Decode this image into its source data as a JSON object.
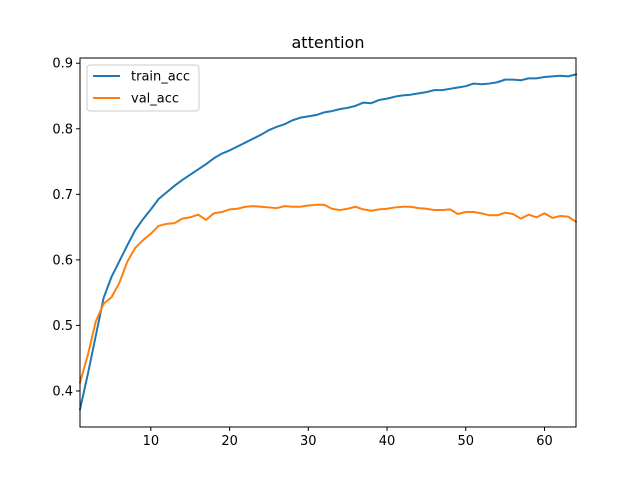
{
  "chart_data": {
    "type": "line",
    "title": "attention",
    "xlabel": "",
    "ylabel": "",
    "xlim": [
      1,
      64
    ],
    "ylim": [
      0.345,
      0.908
    ],
    "xticks": [
      10,
      20,
      30,
      40,
      50,
      60
    ],
    "yticks": [
      0.4,
      0.5,
      0.6,
      0.7,
      0.8,
      0.9
    ],
    "xtick_labels": [
      "10",
      "20",
      "30",
      "40",
      "50",
      "60"
    ],
    "ytick_labels": [
      "0.4",
      "0.5",
      "0.6",
      "0.7",
      "0.8",
      "0.9"
    ],
    "grid": false,
    "legend_position": "upper-left",
    "x": [
      1,
      2,
      3,
      4,
      5,
      6,
      7,
      8,
      9,
      10,
      11,
      12,
      13,
      14,
      15,
      16,
      17,
      18,
      19,
      20,
      21,
      22,
      23,
      24,
      25,
      26,
      27,
      28,
      29,
      30,
      31,
      32,
      33,
      34,
      35,
      36,
      37,
      38,
      39,
      40,
      41,
      42,
      43,
      44,
      45,
      46,
      47,
      48,
      49,
      50,
      51,
      52,
      53,
      54,
      55,
      56,
      57,
      58,
      59,
      60,
      61,
      62,
      63,
      64
    ],
    "series": [
      {
        "name": "train_acc",
        "color": "#1f77b4",
        "values": [
          0.372,
          0.426,
          0.484,
          0.542,
          0.574,
          0.598,
          0.622,
          0.645,
          0.662,
          0.677,
          0.693,
          0.703,
          0.713,
          0.722,
          0.73,
          0.738,
          0.746,
          0.755,
          0.762,
          0.767,
          0.773,
          0.779,
          0.785,
          0.791,
          0.798,
          0.803,
          0.807,
          0.813,
          0.817,
          0.819,
          0.821,
          0.825,
          0.827,
          0.83,
          0.832,
          0.835,
          0.84,
          0.839,
          0.844,
          0.846,
          0.849,
          0.851,
          0.852,
          0.854,
          0.856,
          0.859,
          0.859,
          0.861,
          0.863,
          0.865,
          0.869,
          0.868,
          0.869,
          0.871,
          0.875,
          0.875,
          0.874,
          0.877,
          0.877,
          0.879,
          0.88,
          0.881,
          0.88,
          0.883
        ]
      },
      {
        "name": "val_acc",
        "color": "#ff7f0e",
        "values": [
          0.413,
          0.455,
          0.506,
          0.533,
          0.543,
          0.565,
          0.597,
          0.618,
          0.63,
          0.64,
          0.652,
          0.655,
          0.656,
          0.663,
          0.665,
          0.669,
          0.661,
          0.671,
          0.673,
          0.677,
          0.678,
          0.681,
          0.682,
          0.681,
          0.68,
          0.679,
          0.682,
          0.681,
          0.681,
          0.683,
          0.684,
          0.684,
          0.678,
          0.676,
          0.678,
          0.681,
          0.677,
          0.675,
          0.677,
          0.678,
          0.68,
          0.681,
          0.681,
          0.679,
          0.678,
          0.676,
          0.676,
          0.677,
          0.67,
          0.673,
          0.673,
          0.671,
          0.668,
          0.668,
          0.672,
          0.67,
          0.663,
          0.669,
          0.665,
          0.671,
          0.664,
          0.667,
          0.666,
          0.658
        ]
      }
    ]
  }
}
